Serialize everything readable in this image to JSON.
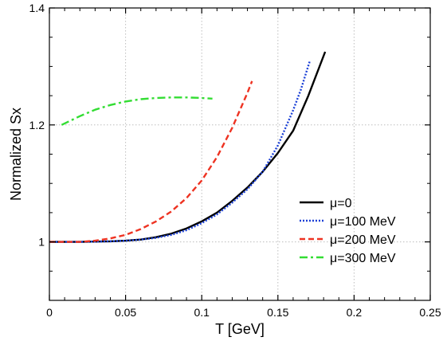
{
  "chart_data": {
    "type": "line",
    "title": "",
    "xlabel": "T [GeV]",
    "ylabel": "Normalized Sx",
    "xlim": [
      0,
      0.25
    ],
    "ylim": [
      0.9,
      1.4
    ],
    "x_ticks": [
      "0",
      "0.05",
      "0.1",
      "0.15",
      "0.2",
      "0.25"
    ],
    "y_ticks": [
      "1",
      "1.2",
      "1.4"
    ],
    "grid": true,
    "legend_position": "lower-right",
    "series": [
      {
        "name": "μ=0",
        "color": "#000000",
        "style": "solid",
        "x": [
          0,
          0.02,
          0.04,
          0.05,
          0.06,
          0.07,
          0.08,
          0.09,
          0.1,
          0.11,
          0.12,
          0.13,
          0.14,
          0.15,
          0.16,
          0.17,
          0.181
        ],
        "y": [
          1.0,
          1.0,
          1.001,
          1.002,
          1.004,
          1.008,
          1.014,
          1.023,
          1.035,
          1.05,
          1.07,
          1.093,
          1.12,
          1.152,
          1.19,
          1.25,
          1.325
        ]
      },
      {
        "name": "μ=100 MeV",
        "color": "#1a3fd6",
        "style": "dotted",
        "x": [
          0,
          0.02,
          0.04,
          0.05,
          0.06,
          0.07,
          0.08,
          0.09,
          0.1,
          0.11,
          0.12,
          0.13,
          0.14,
          0.15,
          0.16,
          0.165,
          0.171
        ],
        "y": [
          1.0,
          1.0,
          1.001,
          1.002,
          1.004,
          1.007,
          1.012,
          1.02,
          1.032,
          1.047,
          1.067,
          1.09,
          1.12,
          1.165,
          1.225,
          1.26,
          1.31
        ]
      },
      {
        "name": "μ=200 MeV",
        "color": "#ee3322",
        "style": "dashed",
        "x": [
          0,
          0.02,
          0.03,
          0.04,
          0.05,
          0.06,
          0.07,
          0.08,
          0.09,
          0.1,
          0.11,
          0.12,
          0.125,
          0.13,
          0.133
        ],
        "y": [
          1.0,
          1.0,
          1.002,
          1.006,
          1.012,
          1.022,
          1.035,
          1.052,
          1.075,
          1.105,
          1.145,
          1.195,
          1.225,
          1.255,
          1.275
        ]
      },
      {
        "name": "μ=300 MeV",
        "color": "#33dd33",
        "style": "dashdot",
        "x": [
          0.008,
          0.02,
          0.03,
          0.04,
          0.05,
          0.06,
          0.07,
          0.08,
          0.09,
          0.1,
          0.107
        ],
        "y": [
          1.2,
          1.215,
          1.226,
          1.234,
          1.24,
          1.244,
          1.246,
          1.247,
          1.247,
          1.246,
          1.245
        ]
      }
    ]
  }
}
